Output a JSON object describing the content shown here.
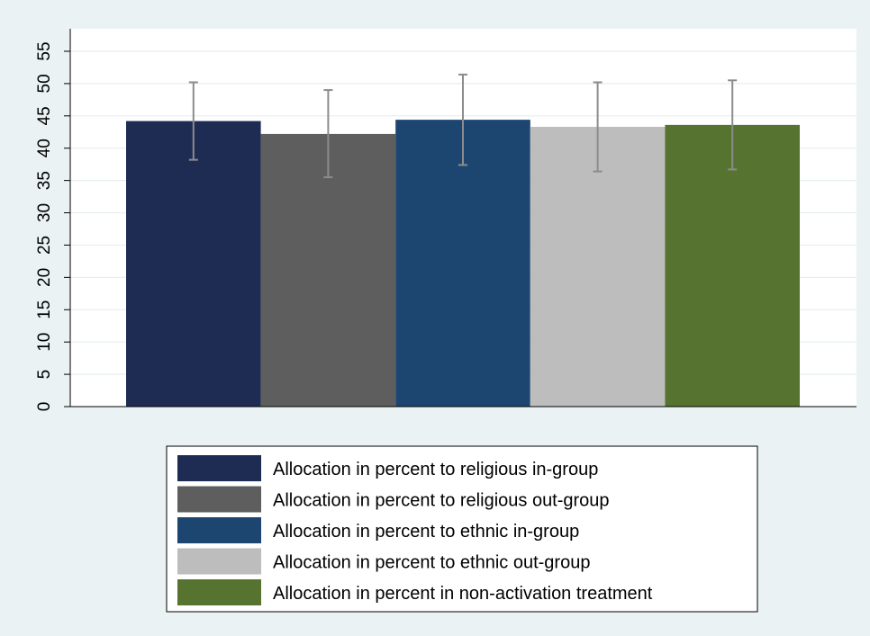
{
  "chart_data": {
    "type": "bar",
    "title": "",
    "xlabel": "",
    "ylabel": "",
    "ylim": [
      0,
      55
    ],
    "yticks": [
      0,
      5,
      10,
      15,
      20,
      25,
      30,
      35,
      40,
      45,
      50,
      55
    ],
    "grid": true,
    "legend_placement": "bottom",
    "series": [
      {
        "name": "Allocation in percent to religious in-group",
        "value": 44.2,
        "ci_low": 38.2,
        "ci_high": 50.2,
        "color": "#1e2c54"
      },
      {
        "name": "Allocation in percent to religious out-group",
        "value": 42.2,
        "ci_low": 35.5,
        "ci_high": 49.0,
        "color": "#5e5e5e"
      },
      {
        "name": "Allocation in percent to ethnic in-group",
        "value": 44.4,
        "ci_low": 37.4,
        "ci_high": 51.4,
        "color": "#1c4670"
      },
      {
        "name": "Allocation in percent to ethnic out-group",
        "value": 43.3,
        "ci_low": 36.4,
        "ci_high": 50.2,
        "color": "#bdbdbd"
      },
      {
        "name": "Allocation in percent in non-activation treatment",
        "value": 43.6,
        "ci_low": 36.7,
        "ci_high": 50.5,
        "color": "#56742f"
      }
    ],
    "error_bar_color": "#8c8c8c"
  }
}
